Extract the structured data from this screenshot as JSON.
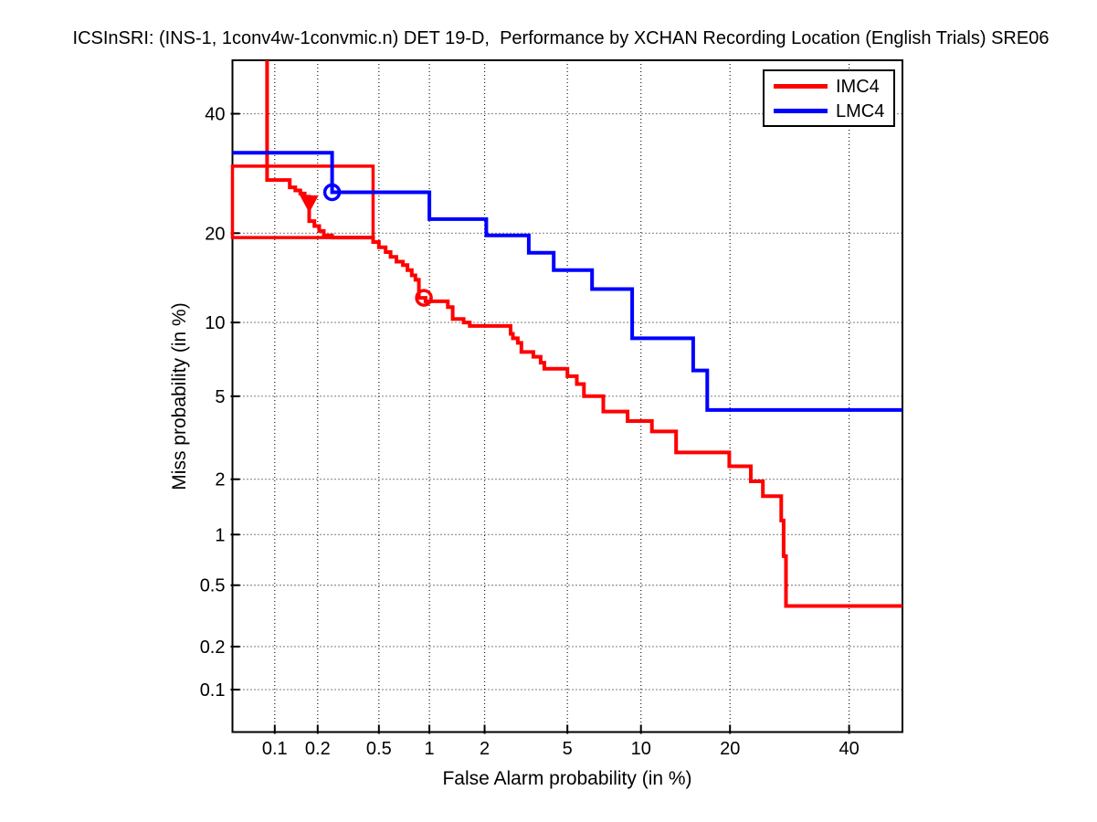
{
  "figure": {
    "background": "#ffffff"
  },
  "chart_data": {
    "type": "line",
    "subtype": "DET-curve step plot",
    "scale": "normal-deviate (probit) on both axes",
    "title": "ICSInSRI: (INS-1, 1conv4w-1convmic.n) DET 19-D,  Performance by XCHAN Recording Location (English Trials) SRE06",
    "xlabel": "False Alarm probability (in %)",
    "ylabel": "Miss probability (in %)",
    "xlim_pct": [
      0.0485,
      50.4
    ],
    "ylim_pct": [
      0.0485,
      50.4
    ],
    "xticks_pct": [
      0.1,
      0.2,
      0.5,
      1,
      2,
      5,
      10,
      20,
      40
    ],
    "yticks_pct": [
      0.1,
      0.2,
      0.5,
      1,
      2,
      5,
      10,
      20,
      40
    ],
    "xtick_labels": [
      "0.1",
      "0.2",
      "0.5",
      "1",
      "2",
      "5",
      "10",
      "20",
      "40"
    ],
    "ytick_labels": [
      "0.1",
      "0.2",
      "0.5",
      "1",
      "2",
      "5",
      "10",
      "20",
      "40"
    ],
    "grid": true,
    "grid_style": "dotted-black",
    "legend_position": "top-right-inside",
    "axis_color": "#000000",
    "series": [
      {
        "name": "IMC4",
        "color": "#ff0000",
        "points": [
          [
            0.088,
            50.4
          ],
          [
            0.088,
            28.1
          ],
          [
            0.128,
            28.1
          ],
          [
            0.128,
            26.9
          ],
          [
            0.14,
            26.9
          ],
          [
            0.14,
            26.4
          ],
          [
            0.152,
            26.4
          ],
          [
            0.152,
            25.9
          ],
          [
            0.163,
            25.9
          ],
          [
            0.163,
            25.4
          ],
          [
            0.175,
            25.4
          ],
          [
            0.175,
            21.7
          ],
          [
            0.19,
            21.7
          ],
          [
            0.19,
            21.0
          ],
          [
            0.205,
            21.0
          ],
          [
            0.205,
            20.3
          ],
          [
            0.22,
            20.3
          ],
          [
            0.22,
            19.7
          ],
          [
            0.25,
            19.7
          ],
          [
            0.25,
            19.4
          ],
          [
            0.46,
            19.4
          ],
          [
            0.46,
            18.8
          ],
          [
            0.5,
            18.8
          ],
          [
            0.5,
            18.1
          ],
          [
            0.55,
            18.1
          ],
          [
            0.55,
            17.5
          ],
          [
            0.59,
            17.5
          ],
          [
            0.59,
            16.9
          ],
          [
            0.64,
            16.9
          ],
          [
            0.64,
            16.3
          ],
          [
            0.7,
            16.3
          ],
          [
            0.7,
            15.9
          ],
          [
            0.745,
            15.9
          ],
          [
            0.745,
            15.3
          ],
          [
            0.79,
            15.3
          ],
          [
            0.79,
            14.7
          ],
          [
            0.83,
            14.7
          ],
          [
            0.83,
            14.2
          ],
          [
            0.87,
            14.2
          ],
          [
            0.87,
            12.3
          ],
          [
            0.95,
            12.3
          ],
          [
            0.95,
            11.95
          ],
          [
            1.27,
            11.95
          ],
          [
            1.27,
            11.4
          ],
          [
            1.35,
            11.4
          ],
          [
            1.35,
            10.3
          ],
          [
            1.55,
            10.3
          ],
          [
            1.55,
            10.0
          ],
          [
            1.67,
            10.0
          ],
          [
            1.67,
            9.7
          ],
          [
            2.71,
            9.7
          ],
          [
            2.71,
            9.05
          ],
          [
            2.78,
            9.05
          ],
          [
            2.78,
            8.7
          ],
          [
            2.94,
            8.7
          ],
          [
            2.94,
            8.35
          ],
          [
            3.06,
            8.35
          ],
          [
            3.06,
            7.68
          ],
          [
            3.49,
            7.68
          ],
          [
            3.49,
            7.35
          ],
          [
            3.78,
            7.35
          ],
          [
            3.78,
            6.95
          ],
          [
            3.93,
            6.95
          ],
          [
            3.93,
            6.56
          ],
          [
            5.0,
            6.56
          ],
          [
            5.0,
            6.1
          ],
          [
            5.5,
            6.1
          ],
          [
            5.5,
            5.65
          ],
          [
            5.9,
            5.65
          ],
          [
            5.9,
            5.0
          ],
          [
            7.11,
            5.0
          ],
          [
            7.11,
            4.27
          ],
          [
            8.89,
            4.27
          ],
          [
            8.89,
            3.86
          ],
          [
            10.98,
            3.86
          ],
          [
            10.98,
            3.45
          ],
          [
            13.4,
            3.45
          ],
          [
            13.4,
            2.73
          ],
          [
            19.9,
            2.73
          ],
          [
            19.9,
            2.33
          ],
          [
            23.0,
            2.33
          ],
          [
            23.0,
            1.95
          ],
          [
            24.85,
            1.95
          ],
          [
            24.85,
            1.63
          ],
          [
            27.8,
            1.63
          ],
          [
            27.8,
            1.2
          ],
          [
            28.2,
            1.2
          ],
          [
            28.2,
            0.75
          ],
          [
            28.6,
            0.75
          ],
          [
            28.6,
            0.37
          ],
          [
            50.4,
            0.37
          ]
        ],
        "markers": [
          {
            "shape": "triangle-down-filled",
            "fa_pct": 0.175,
            "miss_pct": 24.4
          },
          {
            "shape": "circle-open",
            "fa_pct": 0.93,
            "miss_pct": 12.3
          }
        ]
      },
      {
        "name": "LMC4",
        "color": "#0000ff",
        "points": [
          [
            0.0485,
            32.8
          ],
          [
            0.25,
            32.8
          ],
          [
            0.25,
            26.1
          ],
          [
            1.0,
            26.1
          ],
          [
            1.0,
            22.0
          ],
          [
            2.04,
            22.0
          ],
          [
            2.04,
            19.7
          ],
          [
            3.32,
            19.7
          ],
          [
            3.32,
            17.4
          ],
          [
            4.34,
            17.4
          ],
          [
            4.34,
            15.3
          ],
          [
            6.39,
            15.3
          ],
          [
            6.39,
            13.2
          ],
          [
            9.26,
            13.2
          ],
          [
            9.26,
            8.7
          ],
          [
            15.3,
            8.7
          ],
          [
            15.3,
            6.45
          ],
          [
            17.0,
            6.45
          ],
          [
            17.0,
            4.34
          ],
          [
            50.4,
            4.34
          ]
        ],
        "markers": [
          {
            "shape": "circle-open",
            "fa_pct": 0.25,
            "miss_pct": 26.1
          }
        ]
      }
    ],
    "annotations": [
      {
        "type": "rect",
        "name": "dcf-region-box",
        "color": "#ff0000",
        "fa_range_pct": [
          0.0485,
          0.46
        ],
        "miss_range_pct": [
          19.4,
          30.45
        ]
      }
    ]
  },
  "legend": {
    "items": [
      {
        "label": "IMC4",
        "color": "#ff0000"
      },
      {
        "label": "LMC4",
        "color": "#0000ff"
      }
    ]
  }
}
